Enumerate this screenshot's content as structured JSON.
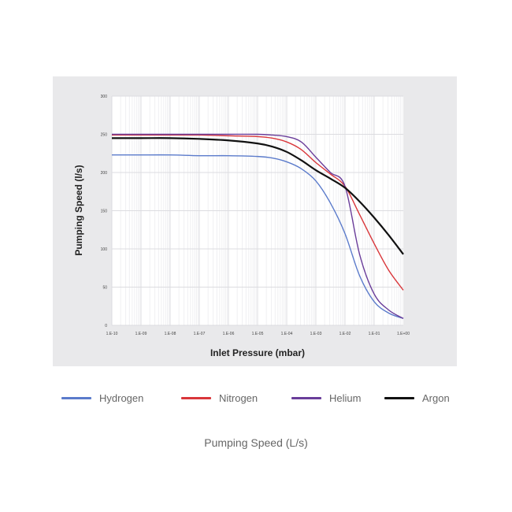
{
  "chart_data": {
    "type": "line",
    "xlabel": "Inlet Pressure (mbar)",
    "ylabel": "Pumping Speed (l/s)",
    "x_scale": "log",
    "xlim": [
      1e-10,
      1
    ],
    "ylim": [
      0,
      300
    ],
    "x_ticks": [
      "1.E-10",
      "1.E-09",
      "1.E-08",
      "1.E-07",
      "1.E-06",
      "1.E-05",
      "1.E-04",
      "1.E-03",
      "1.E-02",
      "1.E-01",
      "1.E+00"
    ],
    "y_ticks": [
      "0",
      "50",
      "100",
      "150",
      "200",
      "250",
      "300"
    ],
    "grid": true,
    "legend_position": "bottom",
    "x": [
      1e-10,
      1e-09,
      1e-08,
      1e-07,
      1e-06,
      1e-05,
      3.16e-05,
      0.0001,
      0.000316,
      0.001,
      0.00316,
      0.01,
      0.0316,
      0.1,
      0.316,
      1
    ],
    "series": [
      {
        "name": "Hydrogen",
        "color": "#5b7bcb",
        "values": [
          223,
          223,
          223,
          222,
          222,
          221,
          219,
          214,
          205,
          189,
          160,
          120,
          65,
          31,
          16,
          9
        ]
      },
      {
        "name": "Nitrogen",
        "color": "#d9363a",
        "values": [
          249,
          249,
          249,
          249,
          248,
          247,
          245,
          240,
          230,
          213,
          198,
          182,
          145,
          107,
          72,
          46
        ]
      },
      {
        "name": "Helium",
        "color": "#6a3d9a",
        "values": [
          250,
          250,
          250,
          250,
          250,
          250,
          249,
          247,
          240,
          220,
          200,
          182,
          93,
          41,
          20,
          9
        ]
      },
      {
        "name": "Argon",
        "color": "#111111",
        "values": [
          245,
          245,
          245,
          244,
          242,
          238,
          234,
          227,
          216,
          203,
          192,
          180,
          162,
          141,
          118,
          93
        ]
      }
    ],
    "caption": "Pumping Speed (L/s)"
  }
}
